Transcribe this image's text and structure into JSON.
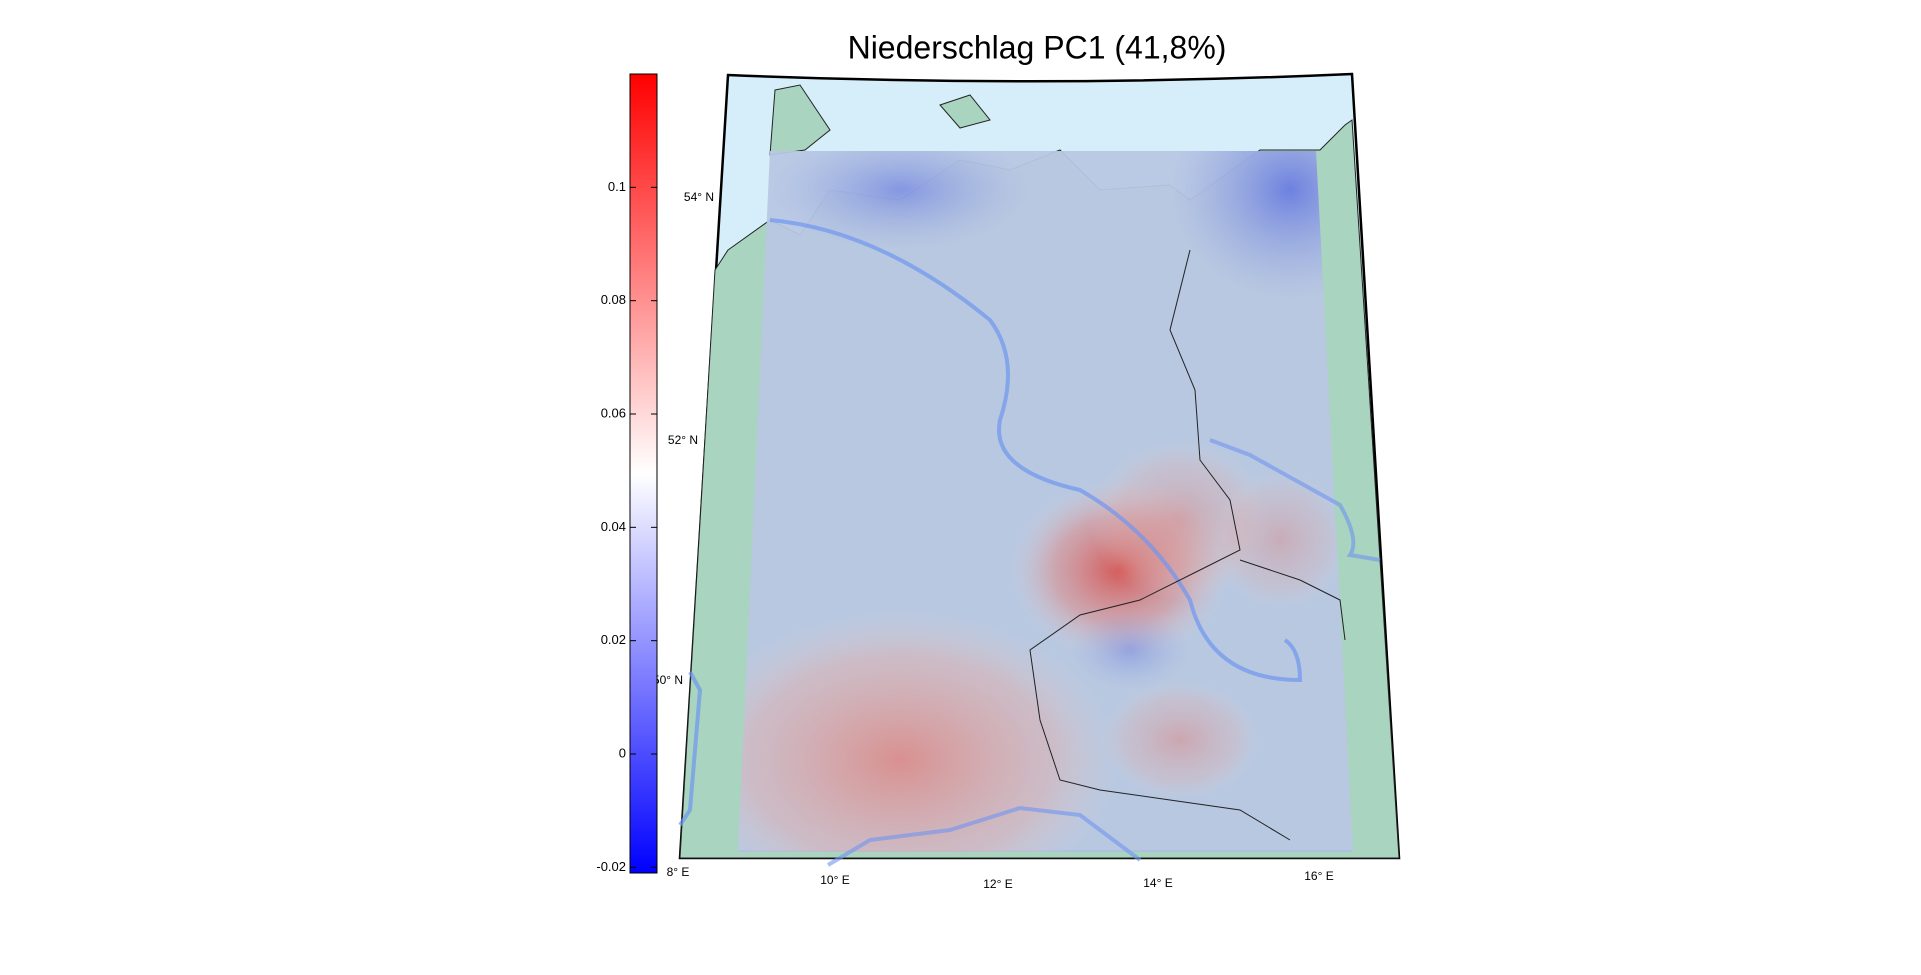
{
  "title": "Niederschlag PC1 (41,8%)",
  "colorbar": {
    "ylim": [
      -0.021,
      0.12
    ],
    "yticks": [
      -0.02,
      0,
      0.02,
      0.04,
      0.06,
      0.08,
      0.1
    ],
    "colors": [
      "#0000ff",
      "#ffffff",
      "#ff0000"
    ]
  },
  "map": {
    "lat_labels": [
      "54° N",
      "52° N",
      "50° N"
    ],
    "lon_labels": [
      "8° E",
      "10° E",
      "12° E",
      "14° E",
      "16° E"
    ]
  }
}
